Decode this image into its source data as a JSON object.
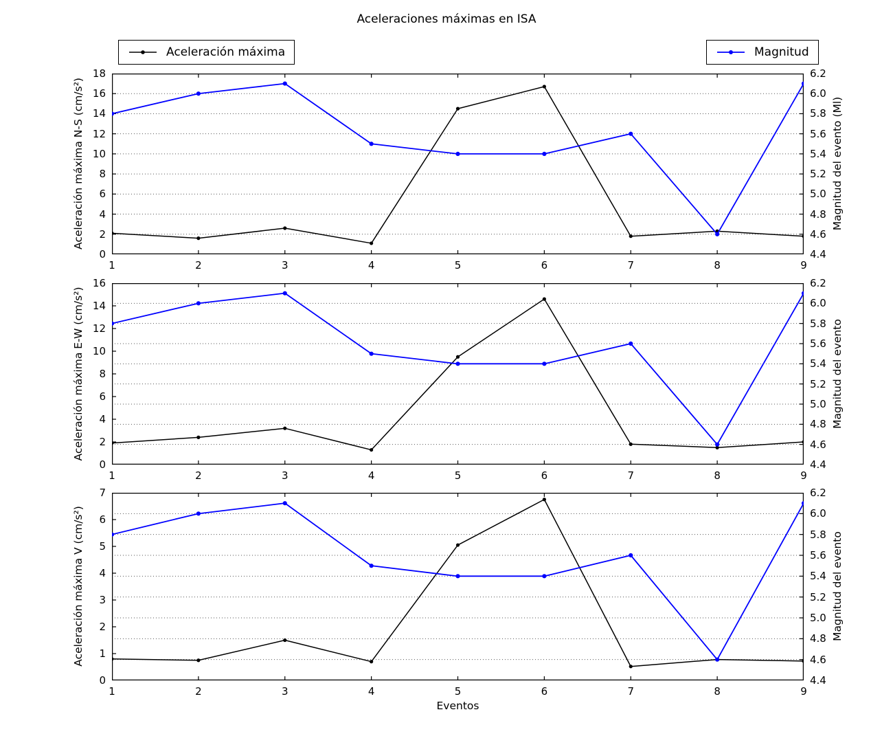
{
  "figure_title": "Aceleraciones máximas en ISA",
  "xlabel": "Eventos",
  "legend": {
    "accel_label": "Aceleración máxima",
    "magnitud_label": "Magnitud"
  },
  "colors": {
    "accel": "#000000",
    "magnitud": "#0000ff",
    "grid": "#555555",
    "axis": "#000000"
  },
  "chart_data": [
    {
      "type": "line",
      "x": [
        1,
        2,
        3,
        4,
        5,
        6,
        7,
        8,
        9
      ],
      "xlabel": "",
      "ylabel_left": "Aceleración máxima N-S (cm/s²)",
      "ylabel_right": "Magnitud del evento (Ml)",
      "ylim_left": [
        0,
        18
      ],
      "yticks_left": [
        0,
        2,
        4,
        6,
        8,
        10,
        12,
        14,
        16,
        18
      ],
      "ylim_right": [
        4.4,
        6.2
      ],
      "yticks_right": [
        4.4,
        4.6,
        4.8,
        5.0,
        5.2,
        5.4,
        5.6,
        5.8,
        6.0,
        6.2
      ],
      "grid": "dotted horizontal at right-axis ticks",
      "legend_position": "figure top",
      "series": [
        {
          "name": "Aceleración máxima",
          "axis": "left",
          "color": "#000000",
          "values": [
            2.1,
            1.6,
            2.6,
            1.1,
            14.5,
            16.7,
            1.8,
            2.3,
            1.8
          ]
        },
        {
          "name": "Magnitud",
          "axis": "right",
          "color": "#0000ff",
          "values": [
            5.8,
            6.0,
            6.1,
            5.5,
            5.4,
            5.4,
            5.6,
            4.6,
            6.1
          ]
        }
      ]
    },
    {
      "type": "line",
      "x": [
        1,
        2,
        3,
        4,
        5,
        6,
        7,
        8,
        9
      ],
      "xlabel": "",
      "ylabel_left": "Aceleración máxima E-W (cm/s²)",
      "ylabel_right": "Magnitud del evento",
      "ylim_left": [
        0,
        16
      ],
      "yticks_left": [
        0,
        2,
        4,
        6,
        8,
        10,
        12,
        14,
        16
      ],
      "ylim_right": [
        4.4,
        6.2
      ],
      "yticks_right": [
        4.4,
        4.6,
        4.8,
        5.0,
        5.2,
        5.4,
        5.6,
        5.8,
        6.0,
        6.2
      ],
      "grid": "dotted horizontal at right-axis ticks",
      "legend_position": "figure top",
      "series": [
        {
          "name": "Aceleración máxima",
          "axis": "left",
          "color": "#000000",
          "values": [
            1.9,
            2.4,
            3.2,
            1.3,
            9.5,
            14.6,
            1.8,
            1.5,
            2.0
          ]
        },
        {
          "name": "Magnitud",
          "axis": "right",
          "color": "#0000ff",
          "values": [
            5.8,
            6.0,
            6.1,
            5.5,
            5.4,
            5.4,
            5.6,
            4.6,
            6.1
          ]
        }
      ]
    },
    {
      "type": "line",
      "x": [
        1,
        2,
        3,
        4,
        5,
        6,
        7,
        8,
        9
      ],
      "xlabel": "Eventos",
      "ylabel_left": "Aceleración máxima V (cm/s²)",
      "ylabel_right": "Magnitud del evento",
      "ylim_left": [
        0,
        7
      ],
      "yticks_left": [
        0,
        1,
        2,
        3,
        4,
        5,
        6,
        7
      ],
      "ylim_right": [
        4.4,
        6.2
      ],
      "yticks_right": [
        4.4,
        4.6,
        4.8,
        5.0,
        5.2,
        5.4,
        5.6,
        5.8,
        6.0,
        6.2
      ],
      "grid": "dotted horizontal at right-axis ticks",
      "legend_position": "figure top",
      "series": [
        {
          "name": "Aceleración máxima",
          "axis": "left",
          "color": "#000000",
          "values": [
            0.8,
            0.75,
            1.5,
            0.7,
            5.05,
            6.75,
            0.52,
            0.78,
            0.72
          ]
        },
        {
          "name": "Magnitud",
          "axis": "right",
          "color": "#0000ff",
          "values": [
            5.8,
            6.0,
            6.1,
            5.5,
            5.4,
            5.4,
            5.6,
            4.6,
            6.1
          ]
        }
      ]
    }
  ]
}
